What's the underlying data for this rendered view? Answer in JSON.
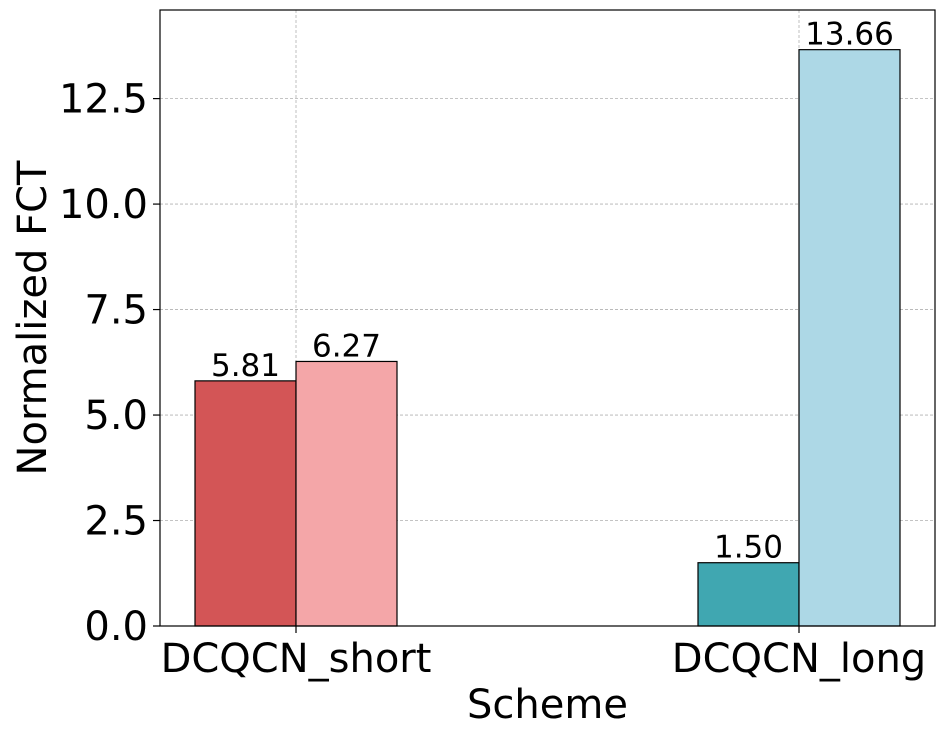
{
  "chart_data": {
    "type": "bar",
    "xlabel": "Scheme",
    "ylabel": "Normalized FCT",
    "ylim": [
      0,
      14.6
    ],
    "yticks": [
      0.0,
      2.5,
      5.0,
      7.5,
      10.0,
      12.5
    ],
    "ytick_labels": [
      "0.0",
      "2.5",
      "5.0",
      "7.5",
      "10.0",
      "12.5"
    ],
    "grid": true,
    "categories": [
      "DCQCN_short",
      "DCQCN_long"
    ],
    "bars": [
      {
        "category": "DCQCN_short",
        "value": 5.81,
        "label": "5.81",
        "color": "#d35556",
        "slot": 0
      },
      {
        "category": "DCQCN_short",
        "value": 6.27,
        "label": "6.27",
        "color": "#f4a6a8",
        "slot": 1
      },
      {
        "category": "DCQCN_long",
        "value": 1.5,
        "label": "1.50",
        "color": "#40a7b1",
        "slot": 0
      },
      {
        "category": "DCQCN_long",
        "value": 13.66,
        "label": "13.66",
        "color": "#add8e6",
        "slot": 1
      }
    ]
  }
}
